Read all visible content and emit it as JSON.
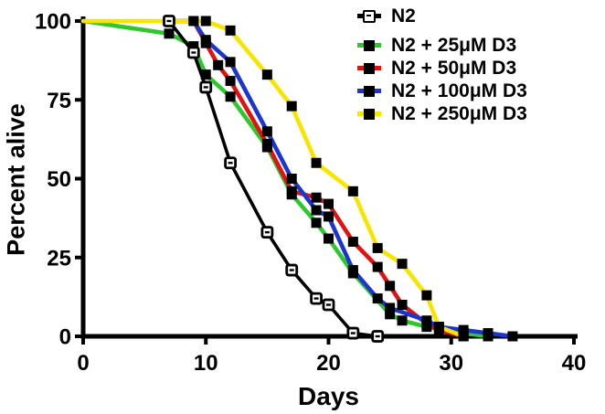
{
  "figure": {
    "background": "#ffffff",
    "axis_color": "#000000"
  },
  "chart_data": {
    "type": "line",
    "title": "",
    "xlabel": "Days",
    "ylabel": "Percent alive",
    "xlim": [
      0,
      40
    ],
    "ylim": [
      0,
      100
    ],
    "xticks": [
      0,
      10,
      20,
      30,
      40
    ],
    "yticks": [
      0,
      25,
      50,
      75,
      100
    ],
    "grid": false,
    "legend_position": "top-right",
    "series": [
      {
        "name": "N2",
        "color": "#000000",
        "marker": "open-square",
        "points": [
          [
            7,
            100
          ],
          [
            9,
            90
          ],
          [
            10,
            79
          ],
          [
            12,
            55
          ],
          [
            15,
            33
          ],
          [
            17,
            21
          ],
          [
            19,
            12
          ],
          [
            20,
            10
          ],
          [
            22,
            1
          ],
          [
            24,
            0
          ]
        ]
      },
      {
        "name": "N2 + 25μM D3",
        "color": "#2ec82e",
        "marker": "filled-square",
        "points": [
          [
            0,
            100
          ],
          [
            7,
            96
          ],
          [
            9,
            92
          ],
          [
            10,
            83
          ],
          [
            12,
            76
          ],
          [
            15,
            60
          ],
          [
            17,
            45
          ],
          [
            19,
            36
          ],
          [
            20,
            31
          ],
          [
            22,
            20
          ],
          [
            25,
            7
          ],
          [
            26,
            5
          ],
          [
            28,
            3
          ],
          [
            31,
            1
          ],
          [
            33,
            0
          ]
        ]
      },
      {
        "name": "N2 + 50μM D3",
        "color": "#e01212",
        "marker": "filled-square",
        "points": [
          [
            7,
            100
          ],
          [
            9,
            100
          ],
          [
            10,
            93
          ],
          [
            11,
            86
          ],
          [
            12,
            81
          ],
          [
            15,
            61
          ],
          [
            17,
            46
          ],
          [
            19,
            44
          ],
          [
            20,
            42
          ],
          [
            22,
            30
          ],
          [
            24,
            22
          ],
          [
            25,
            16
          ],
          [
            26,
            10
          ],
          [
            28,
            4
          ],
          [
            29,
            2
          ],
          [
            31,
            0
          ]
        ]
      },
      {
        "name": "N2 + 100μM D3",
        "color": "#1c35cf",
        "marker": "filled-square",
        "points": [
          [
            7,
            100
          ],
          [
            9,
            100
          ],
          [
            10,
            94
          ],
          [
            12,
            87
          ],
          [
            15,
            65
          ],
          [
            17,
            50
          ],
          [
            19,
            40
          ],
          [
            20,
            38
          ],
          [
            22,
            21
          ],
          [
            24,
            12
          ],
          [
            25,
            9
          ],
          [
            28,
            5
          ],
          [
            29,
            3
          ],
          [
            31,
            2
          ],
          [
            33,
            1
          ],
          [
            35,
            0
          ]
        ]
      },
      {
        "name": "N2 + 250μM D3",
        "color": "#f7e500",
        "marker": "filled-square",
        "points": [
          [
            0,
            100
          ],
          [
            10,
            100
          ],
          [
            12,
            97
          ],
          [
            15,
            83
          ],
          [
            17,
            73
          ],
          [
            19,
            55
          ],
          [
            22,
            46
          ],
          [
            24,
            28
          ],
          [
            26,
            23
          ],
          [
            28,
            13
          ],
          [
            29,
            3
          ],
          [
            31,
            0
          ]
        ]
      }
    ]
  }
}
